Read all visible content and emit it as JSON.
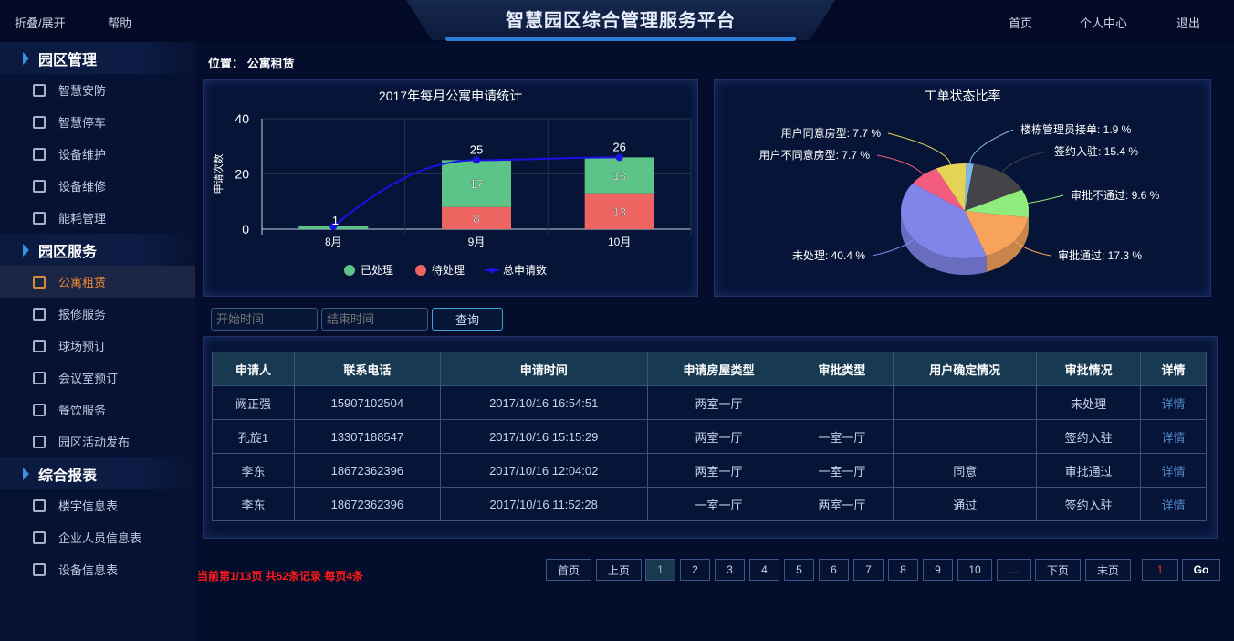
{
  "header": {
    "toggle": "折叠/展开",
    "help": "帮助",
    "title": "智慧园区综合管理服务平台",
    "home": "首页",
    "profile": "个人中心",
    "logout": "退出"
  },
  "sidebar": {
    "groups": [
      {
        "label": "园区管理",
        "items": [
          {
            "label": "智慧安防",
            "icon": "shield-icon"
          },
          {
            "label": "智慧停车",
            "icon": "parking-icon"
          },
          {
            "label": "设备维护",
            "icon": "camera-icon"
          },
          {
            "label": "设备维修",
            "icon": "wrench-icon"
          },
          {
            "label": "能耗管理",
            "icon": "bulb-icon"
          }
        ]
      },
      {
        "label": "园区服务",
        "items": [
          {
            "label": "公寓租赁",
            "icon": "building-icon",
            "active": true
          },
          {
            "label": "报修服务",
            "icon": "edit-icon"
          },
          {
            "label": "球场预订",
            "icon": "ball-icon"
          },
          {
            "label": "会议室预订",
            "icon": "meeting-icon"
          },
          {
            "label": "餐饮服务",
            "icon": "dining-icon"
          },
          {
            "label": "园区活动发布",
            "icon": "flag-icon"
          }
        ]
      },
      {
        "label": "综合报表",
        "items": [
          {
            "label": "楼宇信息表",
            "icon": "report-icon"
          },
          {
            "label": "企业人员信息表",
            "icon": "clipboard-icon"
          },
          {
            "label": "设备信息表",
            "icon": "monitor-icon"
          }
        ]
      }
    ]
  },
  "location": {
    "label": "位置：",
    "value": "公寓租赁"
  },
  "chart_data": [
    {
      "type": "bar",
      "title": "2017年每月公寓申请统计",
      "ylabel": "申请次数",
      "xlabel": "",
      "ylim": [
        0,
        40
      ],
      "yticks": [
        0,
        20,
        40
      ],
      "categories": [
        "8月",
        "9月",
        "10月"
      ],
      "stacked": true,
      "grid": true,
      "legend": "bottom",
      "series": [
        {
          "name": "已处理",
          "type": "bar",
          "color": "#5cc486",
          "values": [
            1,
            17,
            13
          ]
        },
        {
          "name": "待处理",
          "type": "bar",
          "color": "#ee6461",
          "values": [
            0,
            8,
            13
          ]
        },
        {
          "name": "总申请数",
          "type": "line",
          "color": "#1a10e8",
          "values": [
            1,
            25,
            26
          ]
        }
      ]
    },
    {
      "type": "pie",
      "title": "工单状态比率",
      "style": "3d",
      "slices": [
        {
          "label": "楼栋管理员接单",
          "value": 1.9,
          "color": "#7fb6ea"
        },
        {
          "label": "签约入驻",
          "value": 15.4,
          "color": "#434348"
        },
        {
          "label": "审批不通过",
          "value": 9.6,
          "color": "#90ed7d"
        },
        {
          "label": "审批通过",
          "value": 17.3,
          "color": "#f7a35c"
        },
        {
          "label": "未处理",
          "value": 40.4,
          "color": "#8085e9"
        },
        {
          "label": "用户不同意房型",
          "value": 7.7,
          "color": "#f15c80"
        },
        {
          "label": "用户同意房型",
          "value": 7.7,
          "color": "#e4d354"
        }
      ]
    }
  ],
  "filter": {
    "start_placeholder": "开始时间",
    "end_placeholder": "结束时间",
    "query": "查询"
  },
  "table": {
    "headers": [
      "申请人",
      "联系电话",
      "申请时间",
      "申请房屋类型",
      "审批类型",
      "用户确定情况",
      "审批情况",
      "详情"
    ],
    "rows": [
      [
        "阙正强",
        "15907102504",
        "2017/10/16 16:54:51",
        "两室一厅",
        "",
        "",
        "未处理",
        "详情"
      ],
      [
        "孔旋1",
        "13307188547",
        "2017/10/16 15:15:29",
        "两室一厅",
        "一室一厅",
        "",
        "签约入驻",
        "详情"
      ],
      [
        "李东",
        "18672362396",
        "2017/10/16 12:04:02",
        "两室一厅",
        "一室一厅",
        "同意",
        "审批通过",
        "详情"
      ],
      [
        "李东",
        "18672362396",
        "2017/10/16 11:52:28",
        "一室一厅",
        "两室一厅",
        "通过",
        "签约入驻",
        "详情"
      ]
    ]
  },
  "pagination": {
    "info": "当前第1/13页 共52条记录 每页4条",
    "first": "首页",
    "prev": "上页",
    "pages": [
      "1",
      "2",
      "3",
      "4",
      "5",
      "6",
      "7",
      "8",
      "9",
      "10",
      "..."
    ],
    "current": "1",
    "next": "下页",
    "last": "末页",
    "jump_value": "1",
    "go": "Go"
  }
}
